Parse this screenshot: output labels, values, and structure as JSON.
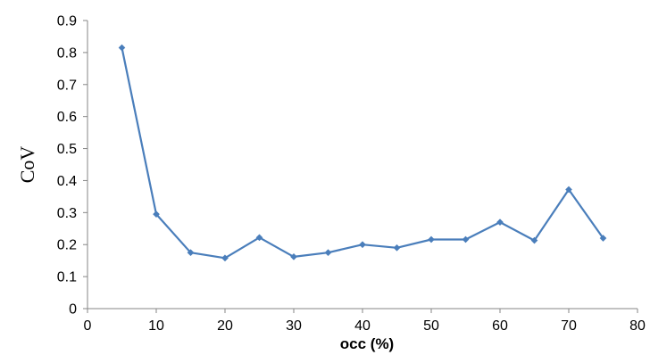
{
  "chart_data": {
    "type": "line",
    "title": "",
    "xlabel": "occ (%)",
    "ylabel": "CoV",
    "xlim": [
      0,
      80
    ],
    "ylim": [
      0,
      0.9
    ],
    "x_ticks": [
      0,
      10,
      20,
      30,
      40,
      50,
      60,
      70,
      80
    ],
    "y_ticks": [
      0,
      0.1,
      0.2,
      0.3,
      0.4,
      0.5,
      0.6,
      0.7,
      0.8,
      0.9
    ],
    "y_tick_labels": [
      "0",
      "0.1",
      "0.2",
      "0.3",
      "0.4",
      "0.5",
      "0.6",
      "0.7",
      "0.8",
      "0.9"
    ],
    "grid": false,
    "legend": "none",
    "series": [
      {
        "color": "#4a7ebb",
        "marker": "diamond",
        "x": [
          5,
          10,
          15,
          20,
          25,
          30,
          35,
          40,
          45,
          50,
          55,
          60,
          65,
          70,
          75
        ],
        "y": [
          0.815,
          0.295,
          0.175,
          0.158,
          0.222,
          0.162,
          0.175,
          0.2,
          0.19,
          0.216,
          0.216,
          0.27,
          0.213,
          0.372,
          0.22
        ]
      }
    ]
  }
}
